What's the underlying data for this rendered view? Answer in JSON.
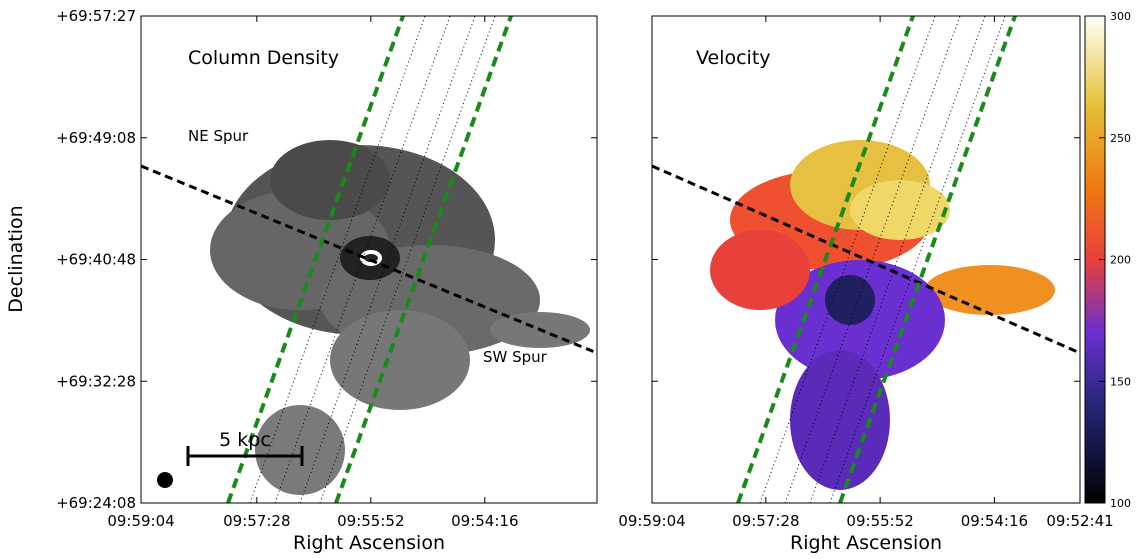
{
  "figure": {
    "y_axis_label": "Declination",
    "yticks": [
      "+69:57:27",
      "+69:49:08",
      "+69:40:48",
      "+69:32:28",
      "+69:24:08"
    ],
    "panels": [
      {
        "label": "Column Density",
        "x_axis_label": "Right Ascension",
        "xticks": [
          "09:59:04",
          "09:57:28",
          "09:55:52",
          "09:54:16"
        ],
        "annotations": [
          "NE Spur",
          "SW Spur",
          "5 kpc"
        ]
      },
      {
        "label": "Velocity",
        "x_axis_label": "Right Ascension",
        "xticks": [
          "09:59:04",
          "09:57:28",
          "09:55:52",
          "09:54:16",
          "09:52:41"
        ]
      }
    ],
    "colorbar": {
      "lim": [
        100,
        300
      ],
      "ticks": [
        100,
        150,
        200,
        250,
        300
      ]
    }
  }
}
